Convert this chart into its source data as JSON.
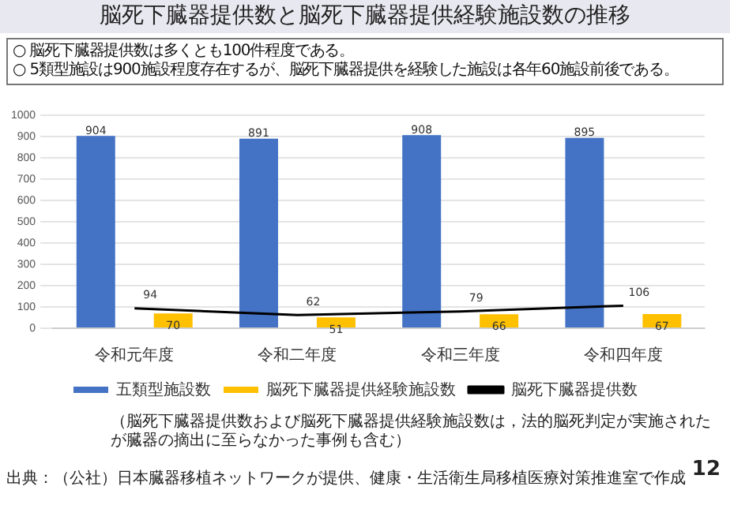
{
  "chart_data": {
    "type": "bar",
    "title": "脳死下臓器提供数と脳死下臓器提供経験施設数の推移",
    "annotations": [
      "○ 脳死下臓器提供数は多くとも100件程度である。",
      "○ 5類型施設は900施設程度存在するが、脳死下臓器提供を経験した施設は各年60施設前後である。",
      "（脳死下臓器提供数および脳死下臓器提供経験施設数は，法的脳死判定が実施されたが臓器の摘出に至らなかった事例も含む）",
      "出典：（公社）日本臓器移植ネットワークが提供、健康・生活衛生局移植医療対策推進室で作成",
      "12"
    ],
    "categories": [
      "令和元年度",
      "令和二年度",
      "令和三年度",
      "令和四年度"
    ],
    "series": [
      {
        "name": "五類型施設数",
        "color": "#4472c4",
        "values": [
          904,
          891,
          908,
          895
        ]
      },
      {
        "name": "脳死下臓器提供経験施設数",
        "color": "#ffc000",
        "values": [
          70,
          51,
          66,
          67
        ]
      },
      {
        "name": "脳死下臓器提供数",
        "type": "line",
        "color": "#000000",
        "values": [
          94,
          62,
          79,
          106
        ]
      }
    ],
    "ylim": [
      0,
      1000
    ],
    "yticks": [
      0,
      100,
      200,
      300,
      400,
      500,
      600,
      700,
      800,
      900,
      1000
    ],
    "grid": "y",
    "legend": "bottom",
    "data_labels": true,
    "marker": "none",
    "line_style": "solid"
  }
}
